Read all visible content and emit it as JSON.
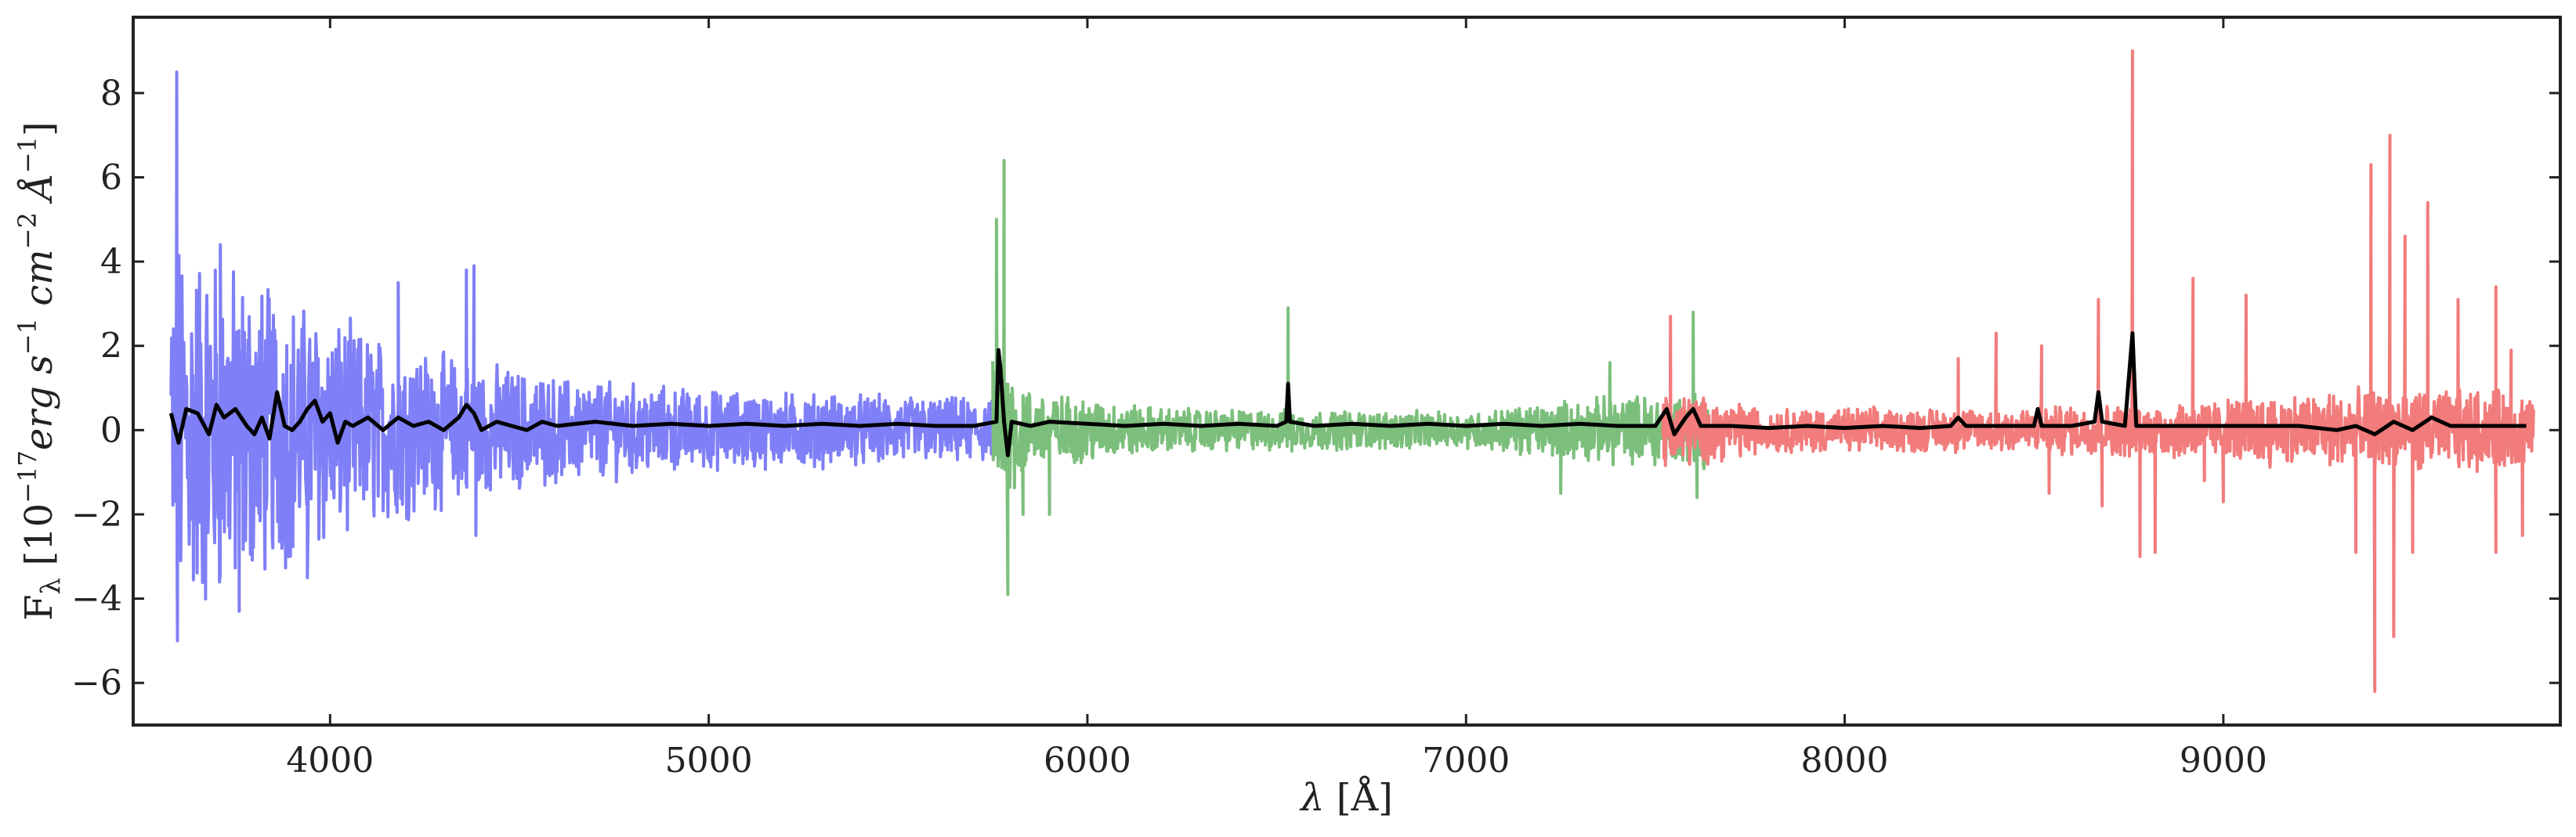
{
  "chart_data": {
    "type": "line",
    "xlabel_symbol": "λ",
    "xlabel_unit": "[Å]",
    "ylabel_symbol": "F",
    "ylabel_sub": "λ",
    "ylabel_units": "[10",
    "ylabel_exp1": "−17",
    "ylabel_erg": "erg s",
    "ylabel_exp2": "−1",
    "ylabel_cm": " cm",
    "ylabel_exp3": "−2",
    "ylabel_ang": " Å",
    "ylabel_exp4": "−1",
    "ylabel_close": "]",
    "xlim": [
      3480,
      9890
    ],
    "ylim": [
      -7.0,
      9.8
    ],
    "x_ticks": [
      4000,
      5000,
      6000,
      7000,
      8000,
      9000
    ],
    "x_tick_labels": [
      "4000",
      "5000",
      "6000",
      "7000",
      "8000",
      "9000"
    ],
    "y_ticks": [
      -6,
      -4,
      -2,
      0,
      2,
      4,
      6,
      8
    ],
    "y_tick_labels": [
      "−6",
      "−4",
      "−2",
      "0",
      "2",
      "4",
      "6",
      "8"
    ],
    "grid": false,
    "series": [
      {
        "color": "#7f7ff7",
        "x_range": [
          3580,
          5800
        ],
        "envelope": [
          [
            3580,
            4.5
          ],
          [
            3700,
            4.0
          ],
          [
            3900,
            3.0
          ],
          [
            4100,
            2.2
          ],
          [
            4350,
            1.6
          ],
          [
            4600,
            1.2
          ],
          [
            5000,
            0.9
          ],
          [
            5400,
            0.8
          ],
          [
            5800,
            0.7
          ]
        ],
        "spikes": [
          [
            3595,
            8.5
          ],
          [
            3597,
            -5.0
          ],
          [
            3710,
            4.4
          ],
          [
            3760,
            -4.3
          ],
          [
            3940,
            -3.5
          ],
          [
            4180,
            3.5
          ],
          [
            4360,
            3.8
          ],
          [
            4380,
            3.9
          ],
          [
            4385,
            -2.5
          ]
        ]
      },
      {
        "color": "#7cbf7c",
        "x_range": [
          5750,
          7640
        ],
        "envelope": [
          [
            5750,
            2.0
          ],
          [
            5850,
            0.9
          ],
          [
            6200,
            0.5
          ],
          [
            7000,
            0.4
          ],
          [
            7300,
            0.7
          ],
          [
            7640,
            0.9
          ]
        ],
        "spikes": [
          [
            5760,
            5.0
          ],
          [
            5780,
            6.4
          ],
          [
            5790,
            -3.9
          ],
          [
            5830,
            -2.0
          ],
          [
            5900,
            -2.0
          ],
          [
            6530,
            2.9
          ],
          [
            6540,
            -0.5
          ],
          [
            7250,
            -1.5
          ],
          [
            7380,
            1.6
          ],
          [
            7600,
            2.8
          ],
          [
            7610,
            -1.6
          ]
        ]
      },
      {
        "color": "#f27b7b",
        "x_range": [
          7520,
          9820
        ],
        "envelope": [
          [
            7520,
            0.9
          ],
          [
            7800,
            0.5
          ],
          [
            8300,
            0.5
          ],
          [
            8800,
            0.6
          ],
          [
            9300,
            0.9
          ],
          [
            9820,
            0.9
          ]
        ],
        "spikes": [
          [
            7540,
            2.7
          ],
          [
            7590,
            -0.8
          ],
          [
            8300,
            1.7
          ],
          [
            8400,
            2.3
          ],
          [
            8520,
            2.0
          ],
          [
            8540,
            -1.5
          ],
          [
            8670,
            3.1
          ],
          [
            8680,
            -1.8
          ],
          [
            8760,
            9.0
          ],
          [
            8780,
            -3.0
          ],
          [
            8820,
            -2.9
          ],
          [
            8920,
            3.6
          ],
          [
            8950,
            -1.2
          ],
          [
            9000,
            -1.7
          ],
          [
            9060,
            3.2
          ],
          [
            9350,
            -2.9
          ],
          [
            9390,
            6.3
          ],
          [
            9400,
            -6.2
          ],
          [
            9440,
            7.0
          ],
          [
            9450,
            -4.9
          ],
          [
            9480,
            4.6
          ],
          [
            9500,
            -2.9
          ],
          [
            9540,
            5.4
          ],
          [
            9620,
            3.1
          ],
          [
            9720,
            3.4
          ],
          [
            9720,
            -2.9
          ],
          [
            9760,
            1.9
          ],
          [
            9790,
            -2.5
          ]
        ]
      },
      {
        "color": "#000000",
        "points": [
          [
            3580,
            0.4
          ],
          [
            3600,
            -0.3
          ],
          [
            3620,
            0.5
          ],
          [
            3650,
            0.4
          ],
          [
            3680,
            -0.1
          ],
          [
            3700,
            0.6
          ],
          [
            3720,
            0.3
          ],
          [
            3750,
            0.5
          ],
          [
            3780,
            0.1
          ],
          [
            3800,
            -0.1
          ],
          [
            3820,
            0.3
          ],
          [
            3840,
            -0.2
          ],
          [
            3860,
            0.9
          ],
          [
            3880,
            0.1
          ],
          [
            3900,
            0.0
          ],
          [
            3920,
            0.2
          ],
          [
            3940,
            0.5
          ],
          [
            3960,
            0.7
          ],
          [
            3980,
            0.2
          ],
          [
            4000,
            0.4
          ],
          [
            4020,
            -0.3
          ],
          [
            4040,
            0.2
          ],
          [
            4060,
            0.1
          ],
          [
            4100,
            0.3
          ],
          [
            4140,
            0.0
          ],
          [
            4180,
            0.3
          ],
          [
            4220,
            0.1
          ],
          [
            4260,
            0.2
          ],
          [
            4300,
            0.0
          ],
          [
            4340,
            0.3
          ],
          [
            4360,
            0.6
          ],
          [
            4380,
            0.4
          ],
          [
            4400,
            0.0
          ],
          [
            4440,
            0.2
          ],
          [
            4480,
            0.1
          ],
          [
            4520,
            0.0
          ],
          [
            4560,
            0.2
          ],
          [
            4600,
            0.1
          ],
          [
            4700,
            0.2
          ],
          [
            4800,
            0.1
          ],
          [
            4900,
            0.15
          ],
          [
            5000,
            0.1
          ],
          [
            5100,
            0.15
          ],
          [
            5200,
            0.1
          ],
          [
            5300,
            0.15
          ],
          [
            5400,
            0.1
          ],
          [
            5500,
            0.15
          ],
          [
            5600,
            0.1
          ],
          [
            5700,
            0.1
          ],
          [
            5760,
            0.2
          ],
          [
            5765,
            1.9
          ],
          [
            5770,
            1.5
          ],
          [
            5780,
            0.2
          ],
          [
            5790,
            -0.6
          ],
          [
            5800,
            0.2
          ],
          [
            5850,
            0.1
          ],
          [
            5900,
            0.2
          ],
          [
            6000,
            0.15
          ],
          [
            6100,
            0.1
          ],
          [
            6200,
            0.15
          ],
          [
            6300,
            0.1
          ],
          [
            6400,
            0.15
          ],
          [
            6500,
            0.1
          ],
          [
            6525,
            0.2
          ],
          [
            6530,
            1.1
          ],
          [
            6535,
            0.2
          ],
          [
            6600,
            0.1
          ],
          [
            6700,
            0.15
          ],
          [
            6800,
            0.1
          ],
          [
            6900,
            0.15
          ],
          [
            7000,
            0.1
          ],
          [
            7100,
            0.15
          ],
          [
            7200,
            0.1
          ],
          [
            7300,
            0.15
          ],
          [
            7400,
            0.1
          ],
          [
            7500,
            0.1
          ],
          [
            7530,
            0.5
          ],
          [
            7550,
            -0.1
          ],
          [
            7580,
            0.3
          ],
          [
            7600,
            0.5
          ],
          [
            7620,
            0.1
          ],
          [
            7700,
            0.1
          ],
          [
            7800,
            0.05
          ],
          [
            7900,
            0.1
          ],
          [
            8000,
            0.05
          ],
          [
            8100,
            0.1
          ],
          [
            8200,
            0.05
          ],
          [
            8280,
            0.1
          ],
          [
            8300,
            0.3
          ],
          [
            8320,
            0.1
          ],
          [
            8400,
            0.1
          ],
          [
            8500,
            0.1
          ],
          [
            8510,
            0.5
          ],
          [
            8520,
            0.1
          ],
          [
            8600,
            0.1
          ],
          [
            8660,
            0.2
          ],
          [
            8670,
            0.9
          ],
          [
            8680,
            0.2
          ],
          [
            8740,
            0.1
          ],
          [
            8760,
            2.3
          ],
          [
            8770,
            0.1
          ],
          [
            8800,
            0.1
          ],
          [
            8900,
            0.1
          ],
          [
            9000,
            0.1
          ],
          [
            9100,
            0.1
          ],
          [
            9200,
            0.1
          ],
          [
            9300,
            0.0
          ],
          [
            9350,
            0.1
          ],
          [
            9400,
            -0.1
          ],
          [
            9450,
            0.2
          ],
          [
            9500,
            0.0
          ],
          [
            9550,
            0.3
          ],
          [
            9600,
            0.1
          ],
          [
            9700,
            0.1
          ],
          [
            9800,
            0.1
          ]
        ]
      }
    ]
  }
}
